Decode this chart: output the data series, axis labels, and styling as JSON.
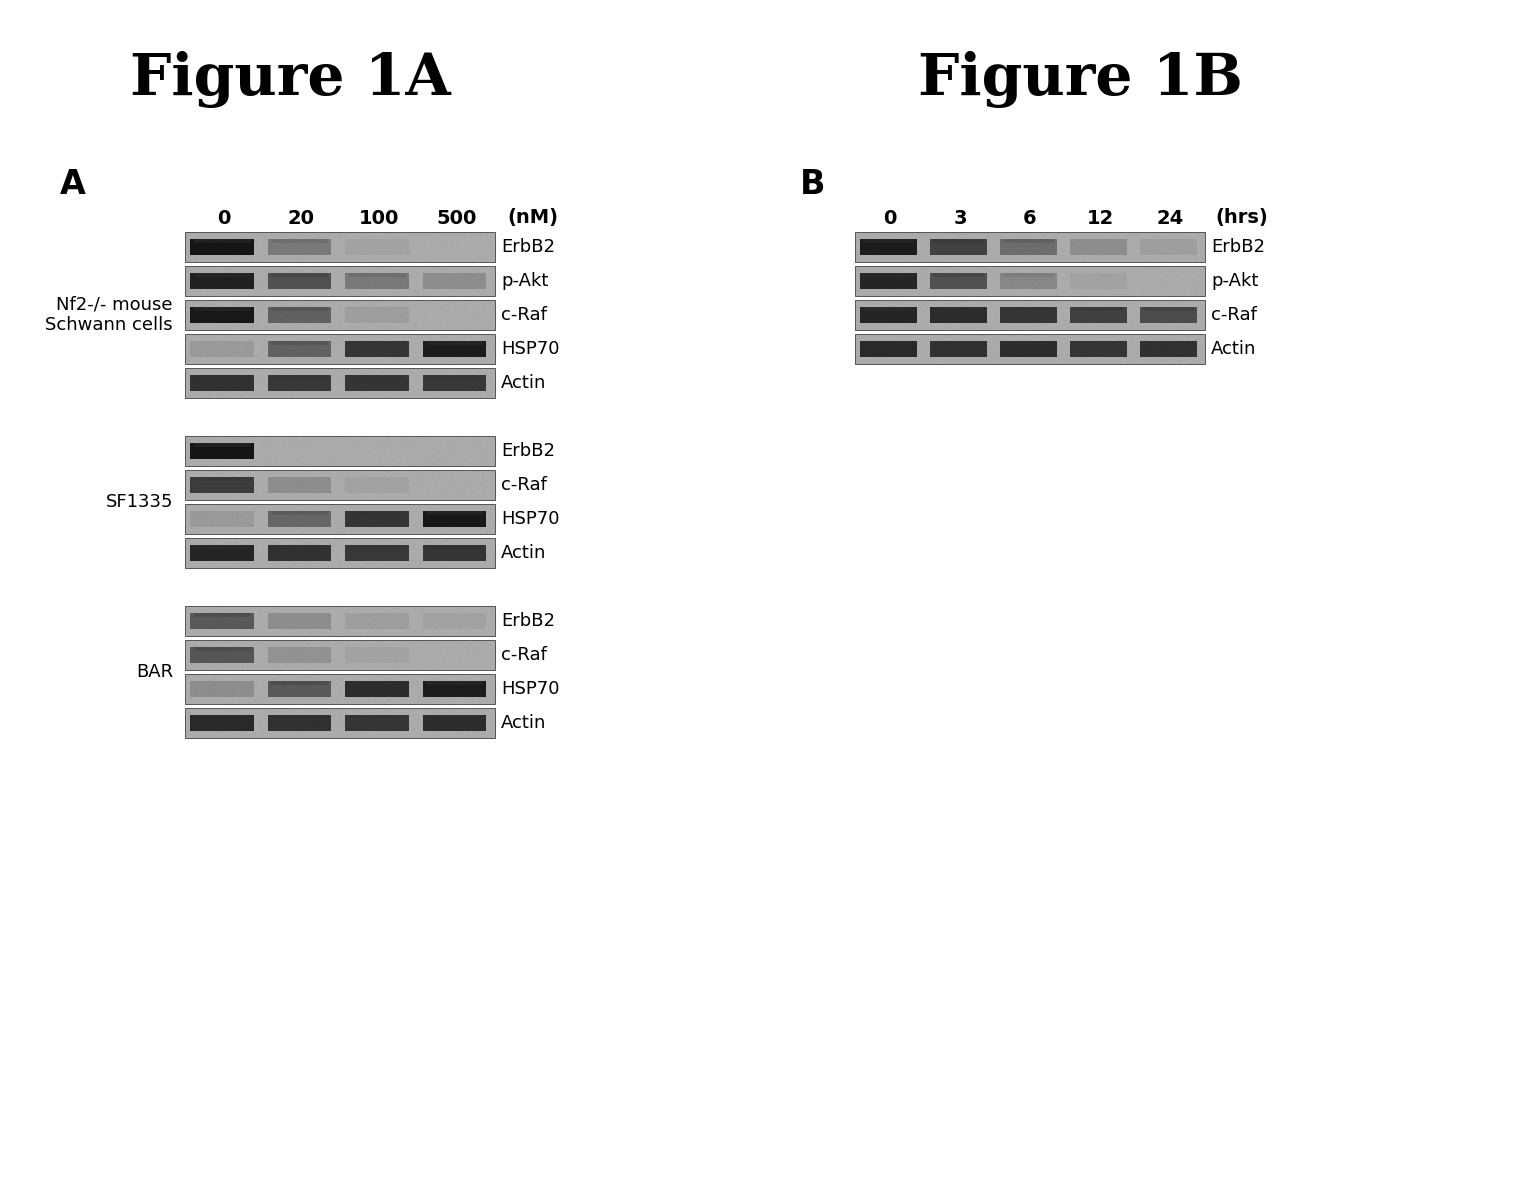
{
  "title_A": "Figure 1A",
  "title_B": "Figure 1B",
  "panel_A_label": "A",
  "panel_B_label": "B",
  "panel_A_concentrations": [
    "0",
    "20",
    "100",
    "500",
    "(nM)"
  ],
  "panel_B_times": [
    "0",
    "3",
    "6",
    "12",
    "24",
    "(hrs)"
  ],
  "bg_color": "#ffffff",
  "title_fontsize": 42,
  "label_fontsize": 13,
  "tick_fontsize": 14,
  "band_label_fontsize": 13,
  "panel_letter_fontsize": 20,
  "panel_A": {
    "groups": [
      {
        "label": "Nf2-/- mouse\nSchwann cells",
        "bands": [
          {
            "name": "ErbB2",
            "intensities": [
              0.92,
              0.3,
              0.05,
              0.0
            ]
          },
          {
            "name": "p-Akt",
            "intensities": [
              0.85,
              0.55,
              0.3,
              0.18
            ]
          },
          {
            "name": "c-Raf",
            "intensities": [
              0.9,
              0.45,
              0.08,
              0.0
            ]
          },
          {
            "name": "HSP70",
            "intensities": [
              0.1,
              0.45,
              0.72,
              0.88
            ]
          },
          {
            "name": "Actin",
            "intensities": [
              0.75,
              0.7,
              0.72,
              0.7
            ]
          }
        ]
      },
      {
        "label": "SF1335",
        "bands": [
          {
            "name": "ErbB2",
            "intensities": [
              0.92,
              0.0,
              0.0,
              0.0
            ]
          },
          {
            "name": "c-Raf",
            "intensities": [
              0.68,
              0.18,
              0.05,
              0.0
            ]
          },
          {
            "name": "HSP70",
            "intensities": [
              0.1,
              0.42,
              0.72,
              0.9
            ]
          },
          {
            "name": "Actin",
            "intensities": [
              0.82,
              0.75,
              0.7,
              0.72
            ]
          }
        ]
      },
      {
        "label": "BAR",
        "bands": [
          {
            "name": "ErbB2",
            "intensities": [
              0.5,
              0.18,
              0.08,
              0.05
            ]
          },
          {
            "name": "c-Raf",
            "intensities": [
              0.52,
              0.15,
              0.05,
              0.0
            ]
          },
          {
            "name": "HSP70",
            "intensities": [
              0.18,
              0.5,
              0.78,
              0.88
            ]
          },
          {
            "name": "Actin",
            "intensities": [
              0.8,
              0.75,
              0.72,
              0.78
            ]
          }
        ]
      }
    ]
  },
  "panel_B": {
    "bands": [
      {
        "name": "ErbB2",
        "intensities": [
          0.88,
          0.65,
          0.38,
          0.18,
          0.08
        ]
      },
      {
        "name": "p-Akt",
        "intensities": [
          0.82,
          0.55,
          0.22,
          0.05,
          0.0
        ]
      },
      {
        "name": "c-Raf",
        "intensities": [
          0.82,
          0.78,
          0.72,
          0.65,
          0.58
        ]
      },
      {
        "name": "Actin",
        "intensities": [
          0.8,
          0.75,
          0.78,
          0.72,
          0.75
        ]
      }
    ]
  }
}
